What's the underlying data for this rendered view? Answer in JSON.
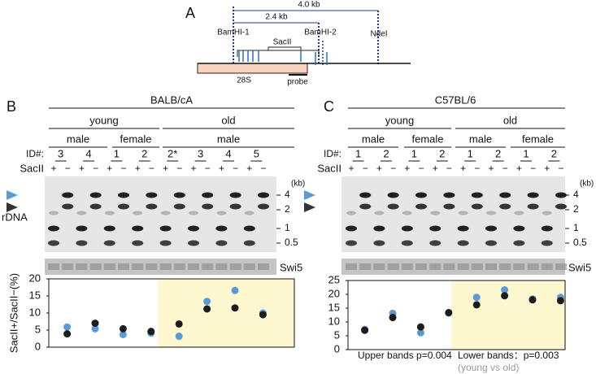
{
  "diagram": {
    "label": "A",
    "dist_long": "4.0 kb",
    "dist_short": "2.4 kb",
    "sites": [
      "BamHI-1",
      "SacII",
      "BamHI-2",
      "NdeI"
    ],
    "gene": "28S",
    "probe": "probe"
  },
  "panel_b": {
    "label": "B",
    "strain": "BALB/cA",
    "ages": [
      "young",
      "old"
    ],
    "sexes": [
      "male",
      "female",
      "male"
    ],
    "id_label": "ID#:",
    "ids": [
      "3",
      "4",
      "1",
      "2",
      "2*",
      "3",
      "4",
      "5"
    ],
    "enzyme": "SacII",
    "lanes": [
      "+",
      "−",
      "+",
      "−",
      "+",
      "−",
      "+",
      "−",
      "+",
      "−",
      "+",
      "−",
      "+",
      "−",
      "+",
      "−"
    ],
    "size_unit": "(kb)",
    "sizes": [
      4,
      2,
      1,
      0.5
    ],
    "target": "rDNA",
    "control": "Swi5"
  },
  "panel_c": {
    "label": "C",
    "strain": "C57BL/6",
    "ages": [
      "young",
      "old"
    ],
    "sexes": [
      "male",
      "female",
      "male",
      "female"
    ],
    "id_label": "ID#:",
    "ids": [
      "1",
      "2",
      "1",
      "2",
      "1",
      "2",
      "1",
      "2"
    ],
    "enzyme": "SacII",
    "lanes": [
      "+",
      "−",
      "+",
      "−",
      "+",
      "−",
      "+",
      "−",
      "+",
      "−",
      "+",
      "−",
      "+",
      "−",
      "+",
      "−"
    ],
    "size_unit": "(kb)",
    "sizes": [
      4,
      2,
      1,
      0.5
    ],
    "control": "Swi5"
  },
  "chart_data": [
    {
      "type": "scatter",
      "y_label": "SacII+/SacII−(%)",
      "categories": [
        null,
        null,
        null,
        null,
        null,
        null,
        null,
        null
      ],
      "series": [
        {
          "color": "#5b9bd5",
          "values": [
            5.9,
            5.4,
            3.7,
            4.1,
            3.2,
            13.4,
            16.6,
            10.0
          ]
        },
        {
          "color": "#1c1c1c",
          "values": [
            3.9,
            7.0,
            5.4,
            4.6,
            6.8,
            11.2,
            11.5,
            9.5
          ]
        }
      ],
      "ylim": [
        0,
        20
      ],
      "yticks": [
        0,
        5,
        10,
        15,
        20
      ]
    },
    {
      "type": "scatter",
      "categories": [
        null,
        null,
        null,
        null,
        null,
        null,
        null,
        null
      ],
      "series": [
        {
          "color": "#5b9bd5",
          "values": [
            7.3,
            13.1,
            6.1,
            13.2,
            18.9,
            21.6,
            18.3,
            18.9
          ]
        },
        {
          "color": "#1c1c1c",
          "values": [
            7.0,
            11.6,
            8.2,
            13.4,
            16.2,
            19.5,
            18.0,
            17.7
          ]
        }
      ],
      "ylim": [
        0,
        25
      ],
      "yticks": [
        0,
        5,
        10,
        15,
        20,
        25
      ],
      "annotations": [
        "Upper bands p=0.004",
        "Lower bands：p=0.003",
        "(young vs old)"
      ]
    }
  ]
}
